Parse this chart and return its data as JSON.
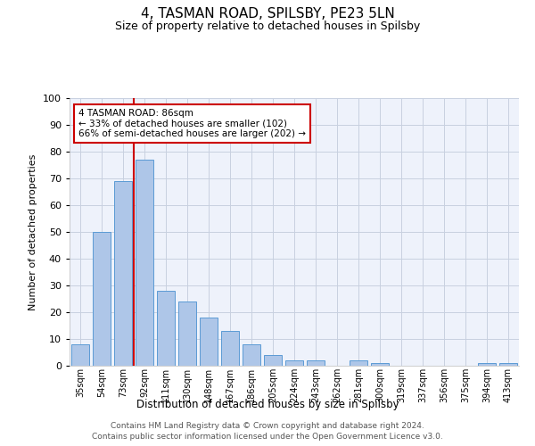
{
  "title": "4, TASMAN ROAD, SPILSBY, PE23 5LN",
  "subtitle": "Size of property relative to detached houses in Spilsby",
  "xlabel": "Distribution of detached houses by size in Spilsby",
  "ylabel": "Number of detached properties",
  "categories": [
    "35sqm",
    "54sqm",
    "73sqm",
    "92sqm",
    "111sqm",
    "130sqm",
    "148sqm",
    "167sqm",
    "186sqm",
    "205sqm",
    "224sqm",
    "243sqm",
    "262sqm",
    "281sqm",
    "300sqm",
    "319sqm",
    "337sqm",
    "356sqm",
    "375sqm",
    "394sqm",
    "413sqm"
  ],
  "values": [
    8,
    50,
    69,
    77,
    28,
    24,
    18,
    13,
    8,
    4,
    2,
    2,
    0,
    2,
    1,
    0,
    0,
    0,
    0,
    1,
    1
  ],
  "bar_color": "#aec6e8",
  "bar_edge_color": "#5b9bd5",
  "vline_index": 3,
  "vline_color": "#cc0000",
  "ylim": [
    0,
    100
  ],
  "yticks": [
    0,
    10,
    20,
    30,
    40,
    50,
    60,
    70,
    80,
    90,
    100
  ],
  "annotation_text": "4 TASMAN ROAD: 86sqm\n← 33% of detached houses are smaller (102)\n66% of semi-detached houses are larger (202) →",
  "annotation_box_color": "#ffffff",
  "annotation_box_edge": "#cc0000",
  "footer_line1": "Contains HM Land Registry data © Crown copyright and database right 2024.",
  "footer_line2": "Contains public sector information licensed under the Open Government Licence v3.0.",
  "bg_color": "#eef2fb",
  "grid_color": "#c8d0e0"
}
